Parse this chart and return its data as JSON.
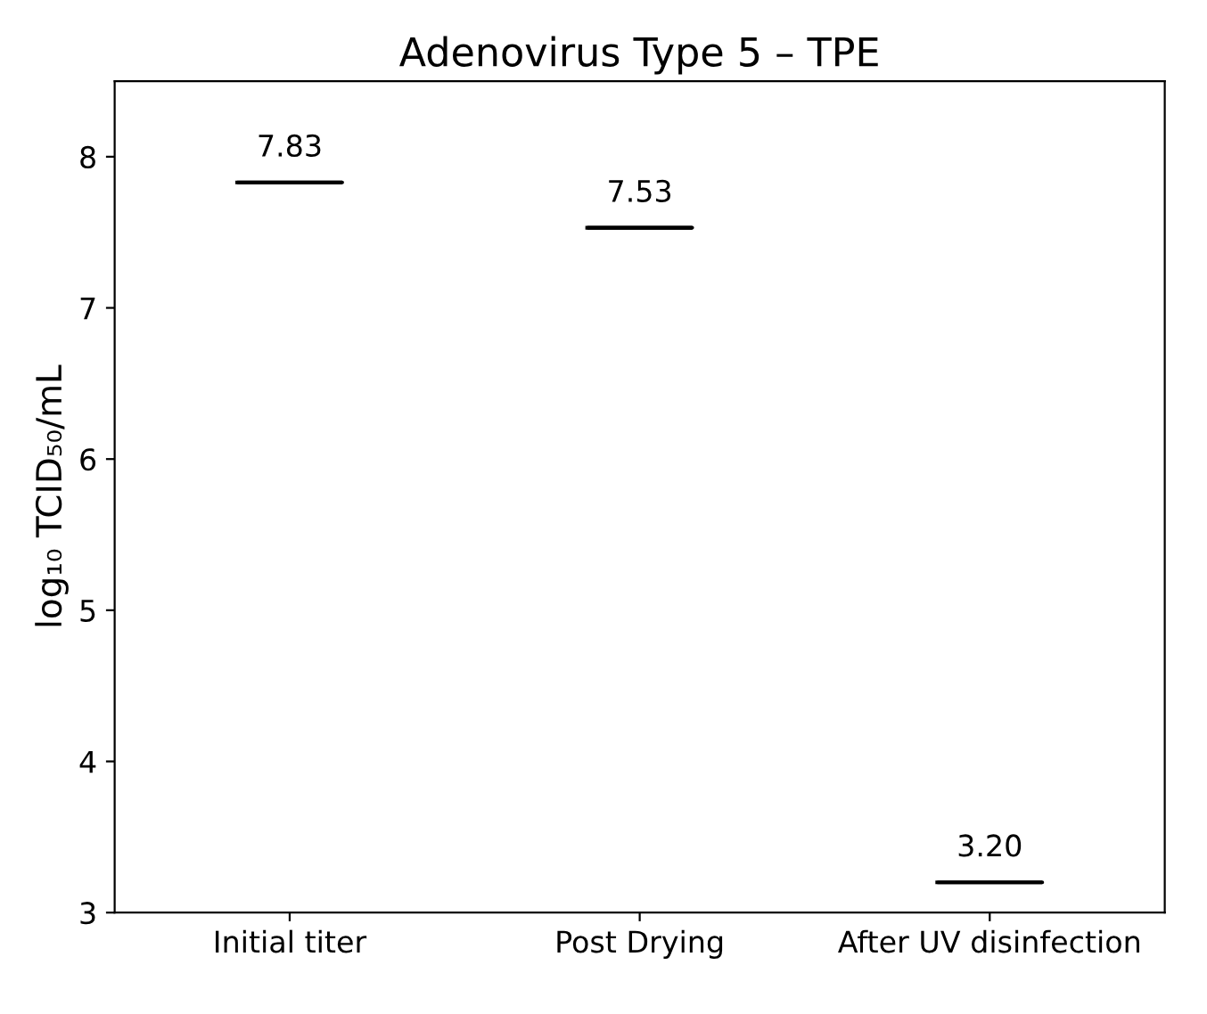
{
  "chart_data": {
    "type": "box",
    "title": "Adenovirus Type 5 – TPE",
    "ylabel": "log₁₀ TCID₅₀/mL",
    "categories": [
      "Initial titer",
      "Post Drying",
      "After UV disinfection"
    ],
    "boxes": [
      {
        "low": 7.83,
        "q1": 7.83,
        "median": 7.83,
        "q3": 7.83,
        "high": 7.83
      },
      {
        "low": 7.53,
        "q1": 7.53,
        "median": 7.53,
        "q3": 7.53,
        "high": 7.53
      },
      {
        "low": 3.2,
        "q1": 3.2,
        "median": 3.2,
        "q3": 3.2,
        "high": 3.2
      }
    ],
    "value_labels": [
      "7.83",
      "7.53",
      "3.20"
    ],
    "color": "#000000",
    "ylim": [
      3,
      8.5
    ],
    "yticks": [
      3,
      4,
      5,
      6,
      7,
      8
    ],
    "grid": false
  }
}
